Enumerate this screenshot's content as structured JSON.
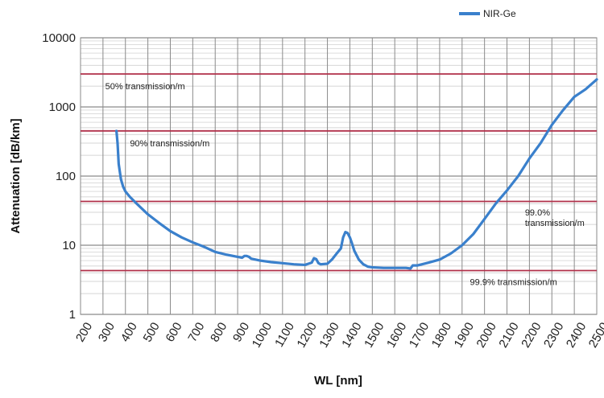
{
  "chart_data": {
    "type": "line",
    "title": "",
    "xlabel": "WL [nm]",
    "ylabel": "Attenuation [dB/km]",
    "xlim": [
      200,
      2500
    ],
    "ylim": [
      1,
      10000
    ],
    "yscale": "log",
    "x_ticks": [
      200,
      300,
      400,
      500,
      600,
      700,
      800,
      900,
      1000,
      1100,
      1200,
      1300,
      1400,
      1500,
      1600,
      1700,
      1800,
      1900,
      2000,
      2100,
      2200,
      2300,
      2400,
      2500
    ],
    "y_ticks": [
      1,
      10,
      100,
      1000,
      10000
    ],
    "grid": true,
    "legend_position": "top-right",
    "series": [
      {
        "name": "NIR-Ge",
        "color": "#3a80cc",
        "x": [
          360,
          365,
          370,
          380,
          390,
          400,
          420,
          450,
          500,
          550,
          600,
          650,
          700,
          750,
          800,
          850,
          900,
          920,
          930,
          940,
          950,
          960,
          1000,
          1050,
          1100,
          1150,
          1200,
          1230,
          1240,
          1250,
          1260,
          1270,
          1300,
          1320,
          1340,
          1360,
          1370,
          1380,
          1390,
          1400,
          1410,
          1420,
          1440,
          1460,
          1480,
          1500,
          1550,
          1600,
          1650,
          1670,
          1680,
          1700,
          1750,
          1800,
          1850,
          1900,
          1950,
          2000,
          2050,
          2100,
          2150,
          2200,
          2250,
          2300,
          2350,
          2400,
          2450,
          2500
        ],
        "y": [
          450,
          300,
          150,
          90,
          70,
          60,
          50,
          40,
          28,
          21,
          16,
          13,
          11,
          9.5,
          8,
          7.3,
          6.8,
          6.6,
          7,
          7,
          6.8,
          6.4,
          6,
          5.7,
          5.5,
          5.3,
          5.2,
          5.6,
          6.5,
          6.3,
          5.5,
          5.3,
          5.4,
          6.2,
          7.5,
          9,
          13,
          15.5,
          15,
          13,
          10.5,
          8.3,
          6.2,
          5.3,
          4.9,
          4.8,
          4.7,
          4.7,
          4.7,
          4.6,
          5.1,
          5.1,
          5.6,
          6.2,
          7.6,
          10,
          14.5,
          24,
          40,
          62,
          100,
          180,
          300,
          550,
          900,
          1400,
          1800,
          2500
        ]
      }
    ],
    "reference_lines": [
      {
        "value": 3000,
        "label": "50% transmission/m",
        "label_lines": [
          "50% transmission/m"
        ],
        "label_x": 310,
        "label_y": 1800
      },
      {
        "value": 450,
        "label": "90% transmission/m",
        "label_lines": [
          "90% transmission/m"
        ],
        "label_x": 420,
        "label_y": 270
      },
      {
        "value": 43,
        "label": "99.0% transmission/m",
        "label_lines": [
          "99.0%",
          "transmission/m"
        ],
        "label_x": 2180,
        "label_y": 27
      },
      {
        "value": 4.3,
        "label": "99.9% transmission/m",
        "label_lines": [
          "99.9% transmission/m"
        ],
        "label_x": 1935,
        "label_y": 2.65
      }
    ],
    "reference_line_color": "#b0304a"
  }
}
